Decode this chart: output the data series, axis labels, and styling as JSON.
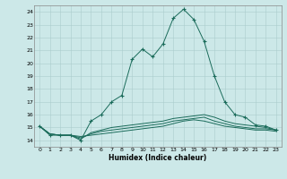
{
  "xlabel": "Humidex (Indice chaleur)",
  "ylabel": "",
  "background_color": "#cce8e8",
  "line_color": "#1a6b5a",
  "grid_color": "#aacccc",
  "xlim": [
    -0.5,
    23.5
  ],
  "ylim": [
    13.5,
    24.5
  ],
  "yticks": [
    14,
    15,
    16,
    17,
    18,
    19,
    20,
    21,
    22,
    23,
    24
  ],
  "xticks": [
    0,
    1,
    2,
    3,
    4,
    5,
    6,
    7,
    8,
    9,
    10,
    11,
    12,
    13,
    14,
    15,
    16,
    17,
    18,
    19,
    20,
    21,
    22,
    23
  ],
  "x": [
    0,
    1,
    2,
    3,
    4,
    5,
    6,
    7,
    8,
    9,
    10,
    11,
    12,
    13,
    14,
    15,
    16,
    17,
    18,
    19,
    20,
    21,
    22,
    23
  ],
  "line1": [
    15.1,
    14.4,
    14.4,
    14.4,
    14.0,
    15.5,
    16.0,
    17.0,
    17.5,
    20.3,
    21.1,
    20.5,
    21.5,
    23.5,
    24.2,
    23.4,
    21.7,
    19.0,
    17.0,
    16.0,
    15.8,
    15.2,
    15.1,
    14.8
  ],
  "line2": [
    15.1,
    14.5,
    14.4,
    14.4,
    14.1,
    14.6,
    14.8,
    15.0,
    15.1,
    15.2,
    15.3,
    15.4,
    15.5,
    15.7,
    15.8,
    15.9,
    16.0,
    15.8,
    15.5,
    15.3,
    15.2,
    15.1,
    15.0,
    14.8
  ],
  "line3": [
    15.1,
    14.5,
    14.4,
    14.4,
    14.2,
    14.5,
    14.7,
    14.8,
    14.9,
    15.0,
    15.1,
    15.2,
    15.3,
    15.5,
    15.6,
    15.7,
    15.8,
    15.5,
    15.3,
    15.1,
    15.0,
    14.9,
    14.9,
    14.8
  ],
  "line4": [
    15.1,
    14.5,
    14.4,
    14.4,
    14.3,
    14.4,
    14.5,
    14.6,
    14.7,
    14.8,
    14.9,
    15.0,
    15.1,
    15.3,
    15.5,
    15.6,
    15.5,
    15.3,
    15.1,
    15.0,
    14.9,
    14.8,
    14.8,
    14.7
  ],
  "xlabel_fontsize": 5.5,
  "tick_fontsize": 4.5,
  "linewidth": 0.7,
  "marker_size": 3.0
}
